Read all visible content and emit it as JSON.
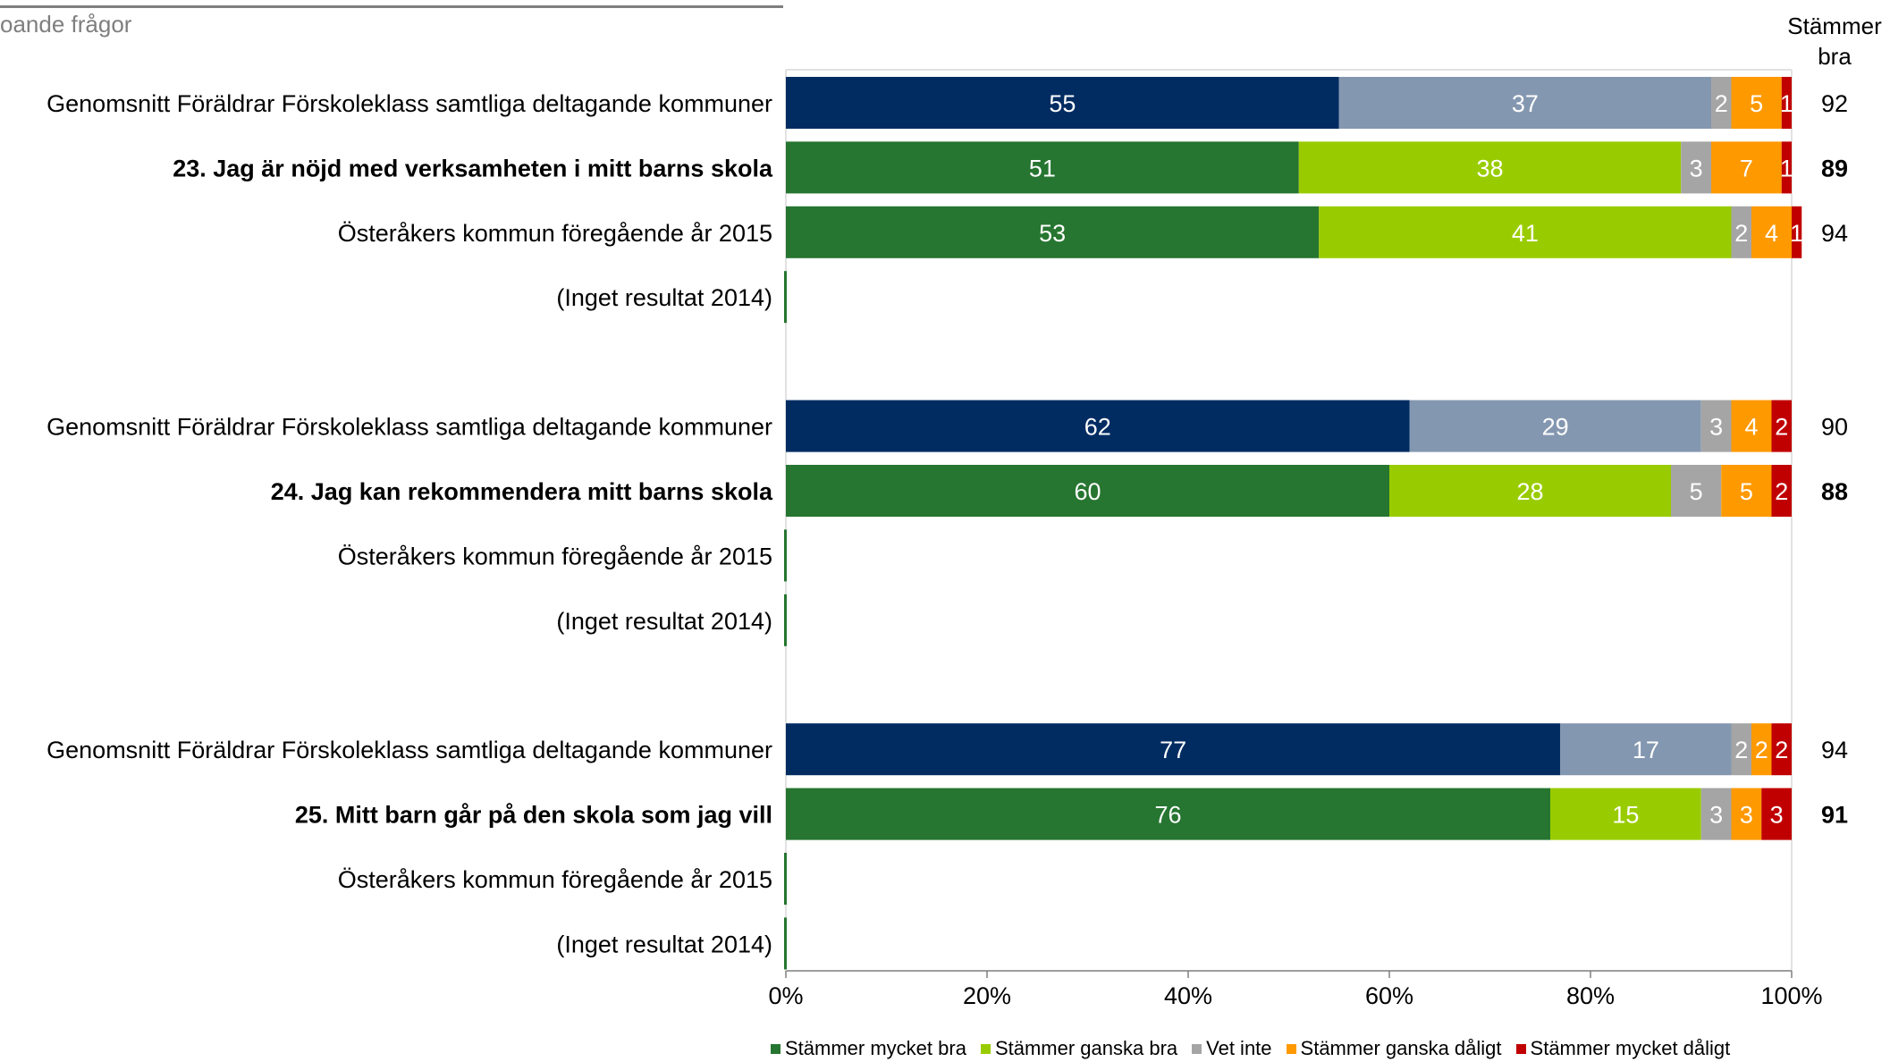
{
  "header": {
    "title_fragment": "oande frågor",
    "right_column_line1": "Stämmer",
    "right_column_line2": "bra"
  },
  "chart_data": {
    "type": "bar",
    "orientation": "horizontal",
    "stacked": true,
    "percent_axis": true,
    "xlim": [
      0,
      100
    ],
    "x_ticks": [
      "0%",
      "20%",
      "40%",
      "60%",
      "80%",
      "100%"
    ],
    "legend_position": "bottom",
    "series": [
      {
        "name": "Stämmer mycket bra",
        "color": "#267530"
      },
      {
        "name": "Stämmer ganska bra",
        "color": "#99CC00"
      },
      {
        "name": "Vet inte",
        "color": "#A5A5A5"
      },
      {
        "name": "Stämmer ganska dåligt",
        "color": "#FF9900"
      },
      {
        "name": "Stämmer mycket dåligt",
        "color": "#C00000"
      }
    ],
    "average_colors": [
      "#002C62",
      "#8497B0",
      "#A5A5A5",
      "#FF9900",
      "#C00000"
    ],
    "rows": [
      {
        "label": "Genomsnitt Föräldrar Förskoleklass samtliga deltagande kommuner",
        "kind": "average",
        "bold": false,
        "values": [
          55,
          37,
          2,
          5,
          1
        ],
        "total": "92"
      },
      {
        "label": "23. Jag är nöjd med verksamheten i mitt barns skola",
        "kind": "question",
        "bold": true,
        "values": [
          51,
          38,
          3,
          7,
          1
        ],
        "total": "89"
      },
      {
        "label": "Österåkers kommun föregående år 2015",
        "kind": "previous",
        "bold": false,
        "values": [
          53,
          41,
          2,
          4,
          1
        ],
        "total": "94"
      },
      {
        "label": "(Inget resultat 2014)",
        "kind": "empty",
        "bold": false,
        "values": [],
        "total": ""
      },
      {
        "label": "Genomsnitt Föräldrar Förskoleklass samtliga deltagande kommuner",
        "kind": "average",
        "bold": false,
        "values": [
          62,
          29,
          3,
          4,
          2
        ],
        "total": "90"
      },
      {
        "label": "24. Jag kan rekommendera mitt barns skola",
        "kind": "question",
        "bold": true,
        "values": [
          60,
          28,
          5,
          5,
          2
        ],
        "total": "88"
      },
      {
        "label": "Österåkers kommun föregående år 2015",
        "kind": "empty",
        "bold": false,
        "values": [],
        "total": ""
      },
      {
        "label": "(Inget resultat 2014)",
        "kind": "empty",
        "bold": false,
        "values": [],
        "total": ""
      },
      {
        "label": "Genomsnitt Föräldrar Förskoleklass samtliga deltagande kommuner",
        "kind": "average",
        "bold": false,
        "values": [
          77,
          17,
          2,
          2,
          2
        ],
        "total": "94"
      },
      {
        "label": "25. Mitt barn går på den skola som jag vill",
        "kind": "question",
        "bold": true,
        "values": [
          76,
          15,
          3,
          3,
          3
        ],
        "total": "91"
      },
      {
        "label": "Österåkers kommun föregående år 2015",
        "kind": "empty",
        "bold": false,
        "values": [],
        "total": ""
      },
      {
        "label": "(Inget resultat 2014)",
        "kind": "empty",
        "bold": false,
        "values": [],
        "total": ""
      }
    ]
  }
}
